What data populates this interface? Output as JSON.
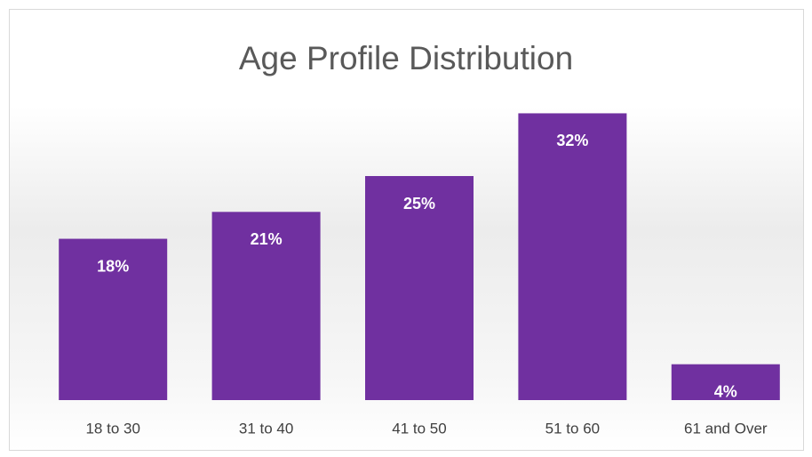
{
  "chart_data": {
    "type": "bar",
    "title": "Age Profile Distribution",
    "categories": [
      "18 to 30",
      "31 to 40",
      "41 to 50",
      "51 to 60",
      "61 and Over"
    ],
    "values": [
      18,
      21,
      25,
      32,
      4
    ],
    "value_labels": [
      "18%",
      "21%",
      "25%",
      "32%",
      "4%"
    ],
    "color": "#7030a0"
  }
}
